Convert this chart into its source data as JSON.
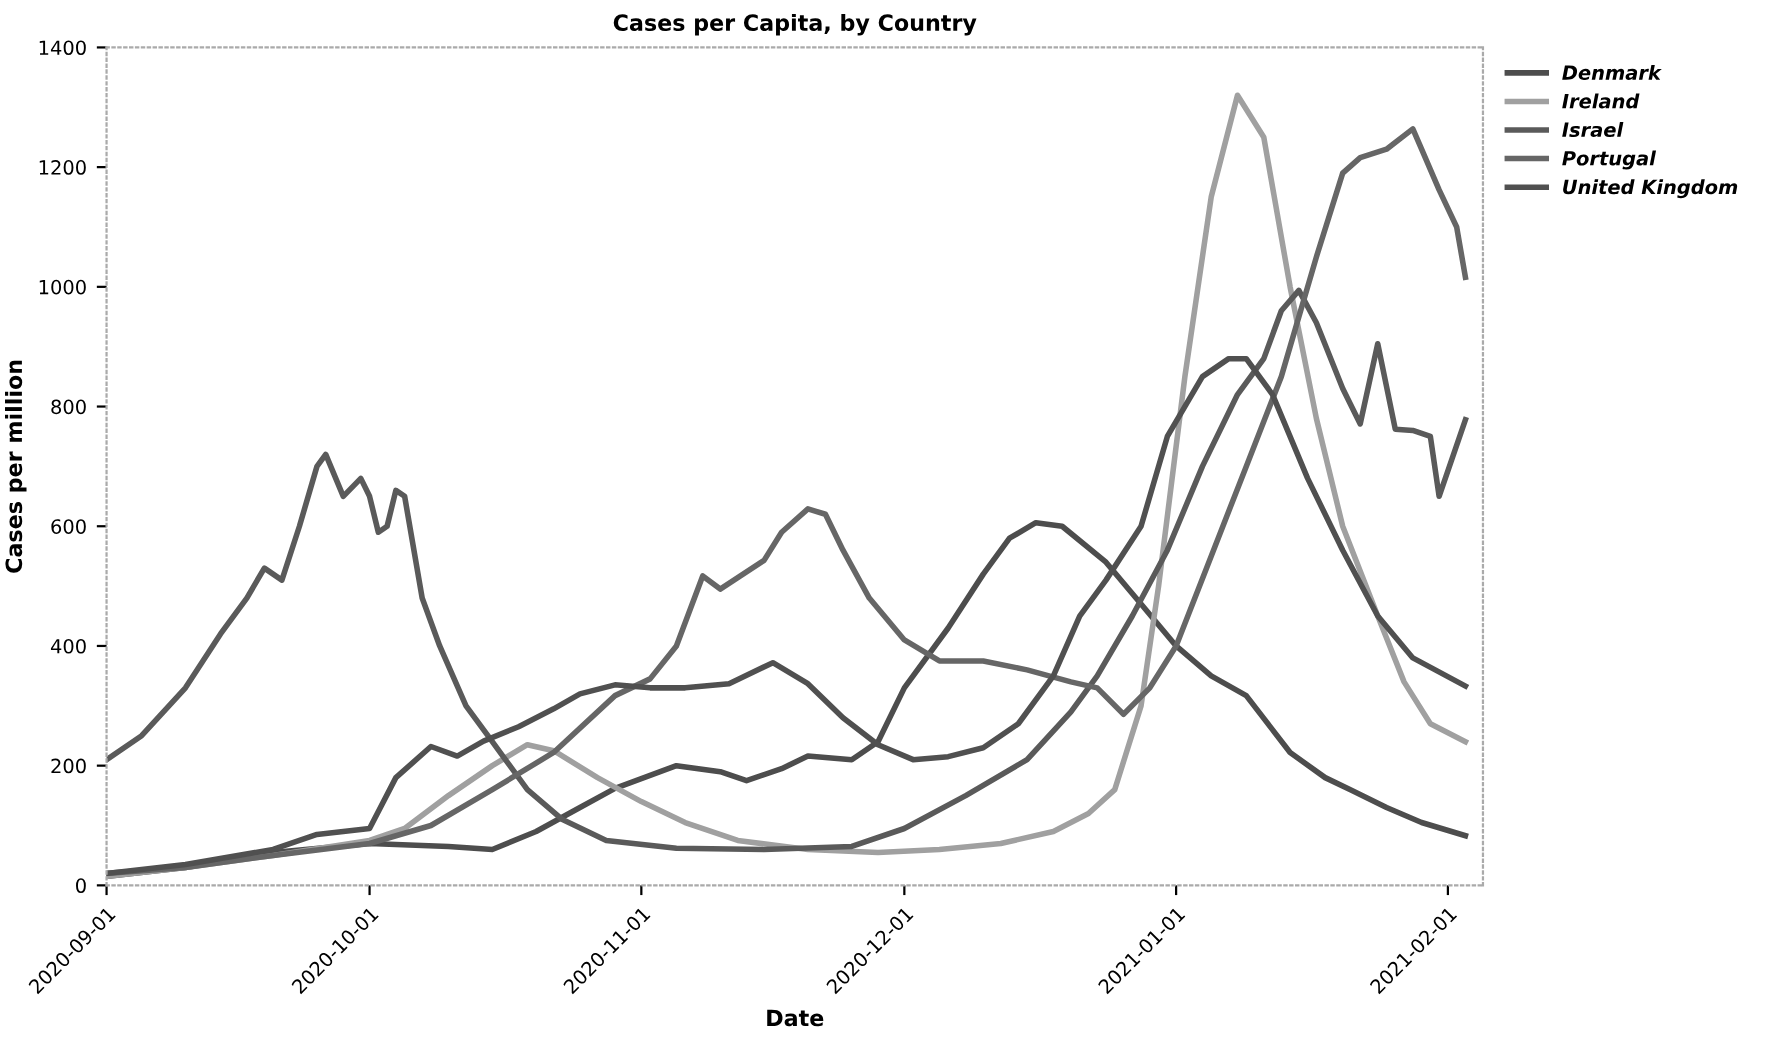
{
  "chart_data": {
    "type": "line",
    "title": "Cases per Capita, by Country",
    "xlabel": "Date",
    "ylabel": "Cases per million",
    "xlim": [
      "2020-09-01",
      "2021-02-05"
    ],
    "xticks": [
      "2020-09-01",
      "2020-10-01",
      "2020-11-01",
      "2020-12-01",
      "2021-01-01",
      "2021-02-01"
    ],
    "ylim": [
      0,
      1400
    ],
    "yticks": [
      0,
      200,
      400,
      600,
      800,
      1000,
      1200,
      1400
    ],
    "grid": false,
    "legend": "top right",
    "marker": "none",
    "line_style": "solid",
    "series": [
      {
        "name": "Denmark",
        "color": "#4d4d4d",
        "x": [
          "2020-09-01",
          "2020-09-10",
          "2020-09-20",
          "2020-10-01",
          "2020-10-10",
          "2020-10-15",
          "2020-10-20",
          "2020-10-25",
          "2020-10-29",
          "2020-11-05",
          "2020-11-10",
          "2020-11-13",
          "2020-11-17",
          "2020-11-20",
          "2020-11-25",
          "2020-11-28",
          "2020-12-01",
          "2020-12-06",
          "2020-12-10",
          "2020-12-13",
          "2020-12-16",
          "2020-12-19",
          "2020-12-24",
          "2020-12-28",
          "2021-01-01",
          "2021-01-05",
          "2021-01-09",
          "2021-01-14",
          "2021-01-18",
          "2021-01-21",
          "2021-01-25",
          "2021-01-29",
          "2021-02-03"
        ],
        "values": [
          15,
          30,
          55,
          70,
          65,
          60,
          90,
          130,
          162,
          200,
          190,
          175,
          195,
          216,
          210,
          240,
          330,
          430,
          520,
          580,
          606,
          600,
          540,
          470,
          400,
          350,
          317,
          222,
          180,
          159,
          130,
          105,
          83
        ]
      },
      {
        "name": "Ireland",
        "color": "#a0a0a0",
        "x": [
          "2020-09-01",
          "2020-09-10",
          "2020-09-20",
          "2020-10-01",
          "2020-10-05",
          "2020-10-10",
          "2020-10-15",
          "2020-10-19",
          "2020-10-22",
          "2020-10-27",
          "2020-11-01",
          "2020-11-06",
          "2020-11-12",
          "2020-11-20",
          "2020-11-28",
          "2020-12-05",
          "2020-12-12",
          "2020-12-18",
          "2020-12-22",
          "2020-12-25",
          "2020-12-28",
          "2020-12-30",
          "2021-01-02",
          "2021-01-05",
          "2021-01-08",
          "2021-01-11",
          "2021-01-14",
          "2021-01-17",
          "2021-01-20",
          "2021-01-24",
          "2021-01-27",
          "2021-01-30",
          "2021-02-03"
        ],
        "values": [
          15,
          30,
          50,
          75,
          95,
          150,
          200,
          235,
          225,
          180,
          140,
          105,
          75,
          60,
          55,
          60,
          70,
          90,
          120,
          160,
          300,
          500,
          850,
          1150,
          1320,
          1250,
          1000,
          780,
          600,
          450,
          340,
          270,
          240
        ]
      },
      {
        "name": "Israel",
        "color": "#5a5a5a",
        "x": [
          "2020-09-01",
          "2020-09-05",
          "2020-09-10",
          "2020-09-14",
          "2020-09-17",
          "2020-09-19",
          "2020-09-21",
          "2020-09-23",
          "2020-09-25",
          "2020-09-26",
          "2020-09-28",
          "2020-09-30",
          "2020-10-01",
          "2020-10-02",
          "2020-10-03",
          "2020-10-04",
          "2020-10-05",
          "2020-10-07",
          "2020-10-09",
          "2020-10-12",
          "2020-10-15",
          "2020-10-19",
          "2020-10-23",
          "2020-10-28",
          "2020-11-05",
          "2020-11-15",
          "2020-11-25",
          "2020-12-01",
          "2020-12-08",
          "2020-12-15",
          "2020-12-20",
          "2020-12-23",
          "2020-12-27",
          "2020-12-31",
          "2021-01-04",
          "2021-01-08",
          "2021-01-11",
          "2021-01-13",
          "2021-01-15",
          "2021-01-17",
          "2021-01-20",
          "2021-01-22",
          "2021-01-24",
          "2021-01-26",
          "2021-01-28",
          "2021-01-30",
          "2021-01-31",
          "2021-02-03"
        ],
        "values": [
          210,
          250,
          330,
          420,
          480,
          530,
          510,
          600,
          700,
          720,
          650,
          680,
          650,
          590,
          600,
          660,
          650,
          480,
          400,
          300,
          240,
          160,
          110,
          75,
          62,
          60,
          65,
          95,
          150,
          210,
          290,
          350,
          450,
          560,
          700,
          820,
          880,
          960,
          994,
          940,
          830,
          771,
          905,
          762,
          760,
          750,
          650,
          778
        ]
      },
      {
        "name": "Portugal",
        "color": "#666666",
        "x": [
          "2020-09-01",
          "2020-09-10",
          "2020-09-20",
          "2020-10-01",
          "2020-10-08",
          "2020-10-15",
          "2020-10-22",
          "2020-10-29",
          "2020-11-02",
          "2020-11-05",
          "2020-11-08",
          "2020-11-10",
          "2020-11-15",
          "2020-11-17",
          "2020-11-20",
          "2020-11-22",
          "2020-11-24",
          "2020-11-27",
          "2020-12-01",
          "2020-12-05",
          "2020-12-10",
          "2020-12-15",
          "2020-12-20",
          "2020-12-23",
          "2020-12-26",
          "2020-12-29",
          "2021-01-01",
          "2021-01-05",
          "2021-01-09",
          "2021-01-13",
          "2021-01-17",
          "2021-01-20",
          "2021-01-22",
          "2021-01-25",
          "2021-01-28",
          "2021-01-29",
          "2021-01-31",
          "2021-02-02",
          "2021-02-03"
        ],
        "values": [
          20,
          30,
          50,
          70,
          100,
          160,
          222,
          317,
          345,
          400,
          517,
          495,
          543,
          590,
          629,
          620,
          560,
          480,
          410,
          375,
          375,
          360,
          340,
          330,
          286,
          330,
          400,
          550,
          700,
          850,
          1050,
          1190,
          1216,
          1230,
          1264,
          1230,
          1162,
          1100,
          1016
        ]
      },
      {
        "name": "United Kingdom",
        "color": "#505050",
        "x": [
          "2020-09-01",
          "2020-09-10",
          "2020-09-20",
          "2020-09-25",
          "2020-10-01",
          "2020-10-04",
          "2020-10-08",
          "2020-10-11",
          "2020-10-14",
          "2020-10-18",
          "2020-10-22",
          "2020-10-25",
          "2020-10-29",
          "2020-11-02",
          "2020-11-06",
          "2020-11-11",
          "2020-11-16",
          "2020-11-20",
          "2020-11-24",
          "2020-11-28",
          "2020-12-02",
          "2020-12-06",
          "2020-12-10",
          "2020-12-14",
          "2020-12-18",
          "2020-12-21",
          "2020-12-24",
          "2020-12-28",
          "2020-12-31",
          "2021-01-04",
          "2021-01-07",
          "2021-01-09",
          "2021-01-12",
          "2021-01-16",
          "2021-01-20",
          "2021-01-24",
          "2021-01-28",
          "2021-02-03"
        ],
        "values": [
          20,
          35,
          60,
          85,
          95,
          180,
          232,
          216,
          241,
          265,
          295,
          320,
          335,
          330,
          330,
          337,
          372,
          337,
          280,
          235,
          210,
          215,
          230,
          270,
          350,
          450,
          510,
          600,
          750,
          850,
          880,
          880,
          820,
          680,
          560,
          450,
          380,
          333
        ]
      }
    ]
  }
}
